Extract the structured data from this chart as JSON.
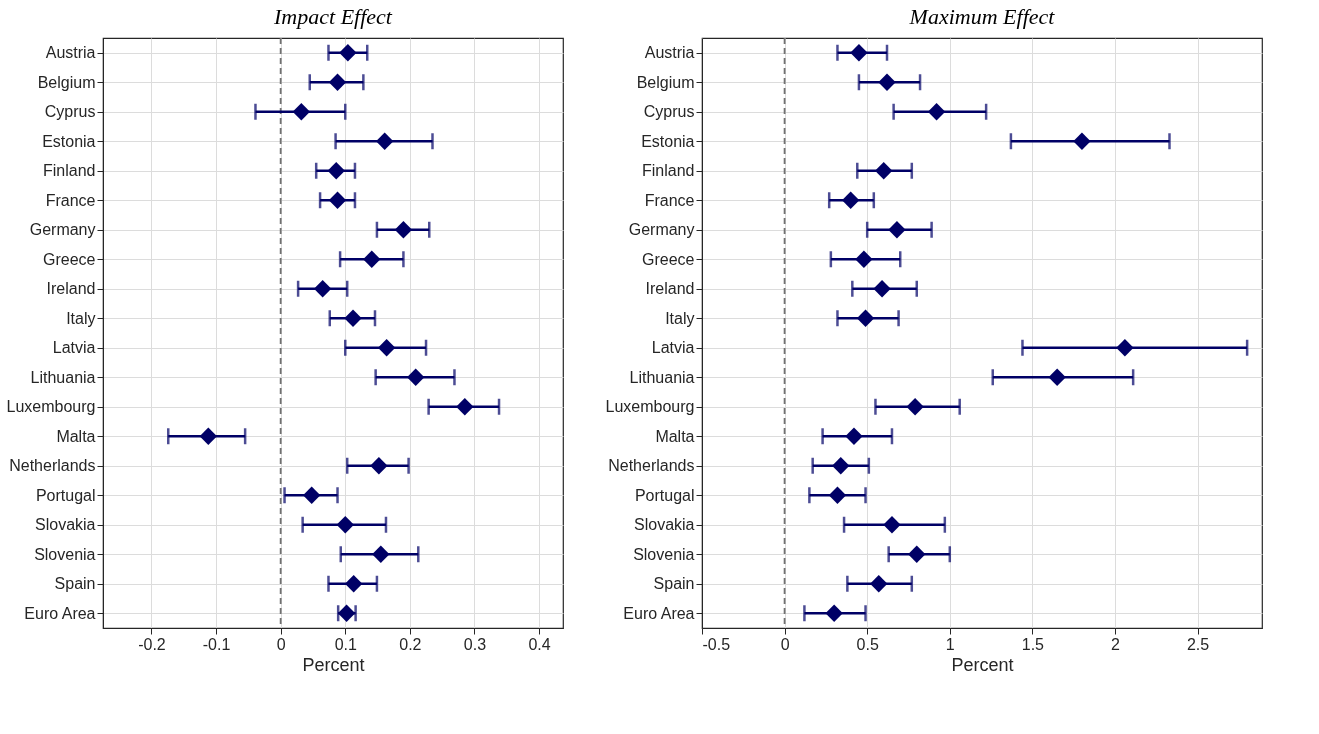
{
  "chart_data": [
    {
      "type": "scatter",
      "orientation": "horizontal",
      "title": "Impact Effect",
      "xlabel": "Percent",
      "categories": [
        "Austria",
        "Belgium",
        "Cyprus",
        "Estonia",
        "Finland",
        "France",
        "Germany",
        "Greece",
        "Ireland",
        "Italy",
        "Latvia",
        "Lithuania",
        "Luxembourg",
        "Malta",
        "Netherlands",
        "Portugal",
        "Slovakia",
        "Slovenia",
        "Spain",
        "Euro Area"
      ],
      "series": [
        {
          "color": "#000066",
          "values": [
            0.104,
            0.088,
            0.032,
            0.161,
            0.086,
            0.088,
            0.19,
            0.141,
            0.065,
            0.112,
            0.164,
            0.209,
            0.285,
            -0.112,
            0.152,
            0.048,
            0.1,
            0.155,
            0.113,
            0.102
          ],
          "errors": [
            [
              0.074,
              0.134
            ],
            [
              0.045,
              0.128
            ],
            [
              -0.039,
              0.1
            ],
            [
              0.085,
              0.235
            ],
            [
              0.055,
              0.115
            ],
            [
              0.061,
              0.115
            ],
            [
              0.149,
              0.23
            ],
            [
              0.092,
              0.19
            ],
            [
              0.027,
              0.103
            ],
            [
              0.076,
              0.146
            ],
            [
              0.1,
              0.225
            ],
            [
              0.147,
              0.269
            ],
            [
              0.229,
              0.338
            ],
            [
              -0.174,
              -0.055
            ],
            [
              0.103,
              0.198
            ],
            [
              0.006,
              0.088
            ],
            [
              0.034,
              0.163
            ],
            [
              0.093,
              0.213
            ],
            [
              0.074,
              0.149
            ],
            [
              0.089,
              0.116
            ]
          ]
        }
      ],
      "xlim": [
        -0.275,
        0.437
      ],
      "xticks": [
        -0.2,
        -0.1,
        0,
        0.1,
        0.2,
        0.3,
        0.4
      ],
      "ref_lines": [
        {
          "axis": "x",
          "value": 0,
          "color": "#707070",
          "line_style": "dashed"
        }
      ],
      "marker": "diamond",
      "grid": true
    },
    {
      "type": "scatter",
      "orientation": "horizontal",
      "title": "Maximum Effect",
      "xlabel": "Percent",
      "categories": [
        "Austria",
        "Belgium",
        "Cyprus",
        "Estonia",
        "Finland",
        "France",
        "Germany",
        "Greece",
        "Ireland",
        "Italy",
        "Latvia",
        "Lithuania",
        "Luxembourg",
        "Malta",
        "Netherlands",
        "Portugal",
        "Slovakia",
        "Slovenia",
        "Spain",
        "Euro Area"
      ],
      "series": [
        {
          "color": "#000066",
          "values": [
            0.45,
            0.62,
            0.92,
            1.8,
            0.6,
            0.4,
            0.68,
            0.48,
            0.59,
            0.49,
            2.06,
            1.65,
            0.79,
            0.42,
            0.34,
            0.32,
            0.65,
            0.8,
            0.57,
            0.3
          ],
          "errors": [
            [
              0.32,
              0.62
            ],
            [
              0.45,
              0.82
            ],
            [
              0.66,
              1.22
            ],
            [
              1.37,
              2.33
            ],
            [
              0.44,
              0.77
            ],
            [
              0.27,
              0.54
            ],
            [
              0.5,
              0.89
            ],
            [
              0.28,
              0.7
            ],
            [
              0.41,
              0.8
            ],
            [
              0.32,
              0.69
            ],
            [
              1.44,
              2.8
            ],
            [
              1.26,
              2.11
            ],
            [
              0.55,
              1.06
            ],
            [
              0.23,
              0.65
            ],
            [
              0.17,
              0.51
            ],
            [
              0.15,
              0.49
            ],
            [
              0.36,
              0.97
            ],
            [
              0.63,
              1.0
            ],
            [
              0.38,
              0.77
            ],
            [
              0.12,
              0.49
            ]
          ]
        }
      ],
      "xlim": [
        -0.5,
        2.89
      ],
      "xticks": [
        -0.5,
        0,
        0.5,
        1,
        1.5,
        2,
        2.5
      ],
      "ref_lines": [
        {
          "axis": "x",
          "value": 0,
          "color": "#707070",
          "line_style": "dashed"
        }
      ],
      "marker": "diamond",
      "grid": true
    }
  ]
}
